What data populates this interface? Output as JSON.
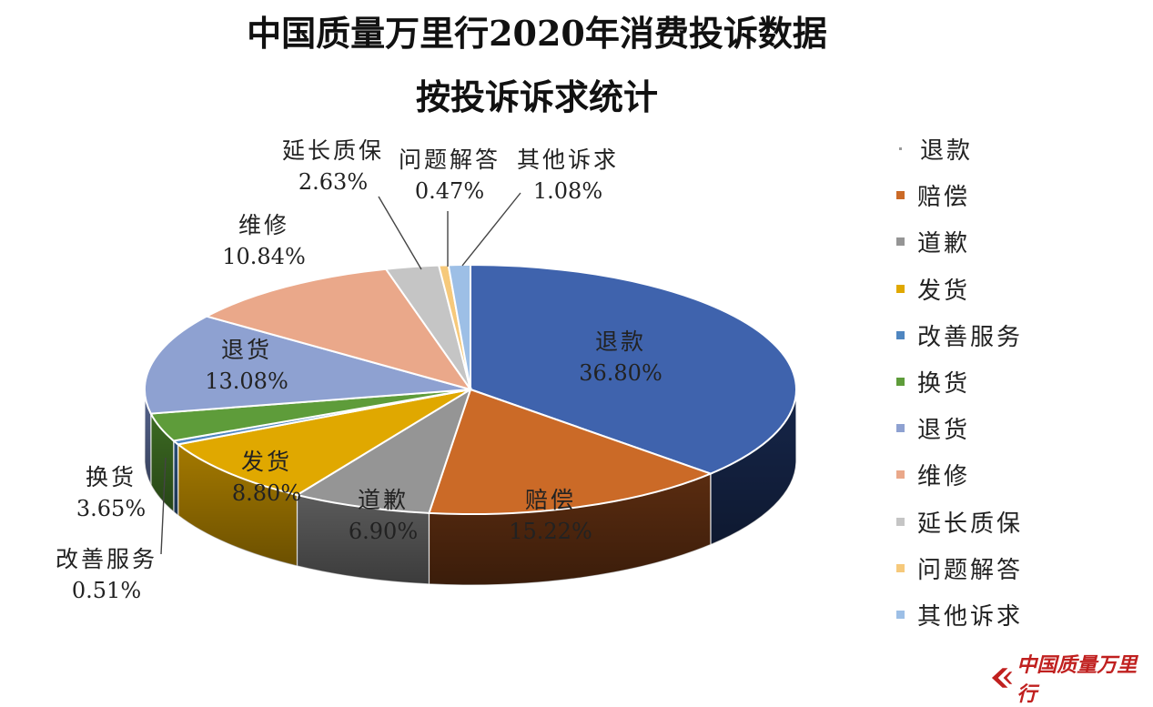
{
  "title": {
    "line1": "中国质量万里行2020年消费投诉数据",
    "line2": "按投诉诉求统计"
  },
  "chart_data": {
    "type": "pie",
    "style": "3d",
    "legend_position": "right",
    "slices": [
      {
        "name": "退款",
        "value": 36.8,
        "label": "36.80%",
        "color": "#3f63ad",
        "side": "#16264a"
      },
      {
        "name": "赔偿",
        "value": 15.22,
        "label": "15.22%",
        "color": "#cb6a27",
        "side": "#5a2c10"
      },
      {
        "name": "道歉",
        "value": 6.9,
        "label": "6.90%",
        "color": "#959595",
        "side": "#5b5b5b"
      },
      {
        "name": "发货",
        "value": 8.8,
        "label": "8.80%",
        "color": "#e0a800",
        "side": "#a57a00"
      },
      {
        "name": "改善服务",
        "value": 0.51,
        "label": "0.51%",
        "color": "#4f86c0",
        "side": "#2a4f78"
      },
      {
        "name": "换货",
        "value": 3.65,
        "label": "3.65%",
        "color": "#5e9c3a",
        "side": "#3c6a22"
      },
      {
        "name": "退货",
        "value": 13.08,
        "label": "13.08%",
        "color": "#8ea1d1",
        "side": "#56658f"
      },
      {
        "name": "维修",
        "value": 10.84,
        "label": "10.84%",
        "color": "#eaa88a",
        "side": "#a36b52"
      },
      {
        "name": "延长质保",
        "value": 2.63,
        "label": "2.63%",
        "color": "#c5c5c5",
        "side": "#8a8a8a"
      },
      {
        "name": "问题解答",
        "value": 0.47,
        "label": "0.47%",
        "color": "#f6c97b",
        "side": "#b58c44"
      },
      {
        "name": "其他诉求",
        "value": 1.08,
        "label": "1.08%",
        "color": "#9dbfe6",
        "side": "#5f7fa8"
      }
    ]
  },
  "logo": {
    "text": "中国质量万里行"
  }
}
